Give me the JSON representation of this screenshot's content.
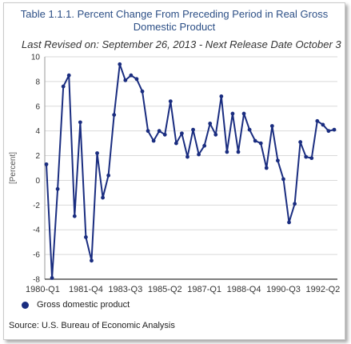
{
  "title_lines": [
    "Table 1.1.1. Percent Change From Preceding Period in Real Gross",
    "Domestic Product"
  ],
  "subtitle": "Last Revised on: September 26, 2013 - Next Release Date October 3",
  "source": "Source: U.S. Bureau of Economic Analysis",
  "colors": {
    "series": "#1a2d80",
    "grid": "#d9d9d9",
    "axis": "#333333",
    "title": "#2c4f86"
  },
  "chart_data": {
    "type": "line",
    "ylabel": "[Percent]",
    "ylim": [
      -8,
      10
    ],
    "yticks": [
      -8,
      -6,
      -4,
      -2,
      0,
      2,
      4,
      6,
      8,
      10
    ],
    "grid": true,
    "legend_position": "bottom-left",
    "x_tick_labels": [
      {
        "index": 0,
        "label": "1980-Q1"
      },
      {
        "index": 7,
        "label": "1981-Q4"
      },
      {
        "index": 14,
        "label": "1983-Q3"
      },
      {
        "index": 21,
        "label": "1985-Q2"
      },
      {
        "index": 28,
        "label": "1987-Q1"
      },
      {
        "index": 35,
        "label": "1988-Q4"
      },
      {
        "index": 42,
        "label": "1990-Q3"
      },
      {
        "index": 49,
        "label": "1992-Q2"
      }
    ],
    "series": [
      {
        "name": "Gross domestic product",
        "values": [
          1.3,
          -7.9,
          -0.7,
          7.6,
          8.5,
          -2.9,
          4.7,
          -4.6,
          -6.5,
          2.2,
          -1.4,
          0.4,
          5.3,
          9.4,
          8.1,
          8.5,
          8.2,
          7.2,
          4.0,
          3.2,
          4.0,
          3.7,
          6.4,
          3.0,
          3.8,
          1.9,
          4.1,
          2.1,
          2.8,
          4.6,
          3.7,
          6.8,
          2.3,
          5.4,
          2.3,
          5.4,
          4.1,
          3.2,
          3.0,
          1.0,
          4.4,
          1.6,
          0.1,
          -3.4,
          -1.9,
          3.1,
          1.9,
          1.8,
          4.8,
          4.5,
          4.0,
          4.1
        ]
      }
    ]
  }
}
